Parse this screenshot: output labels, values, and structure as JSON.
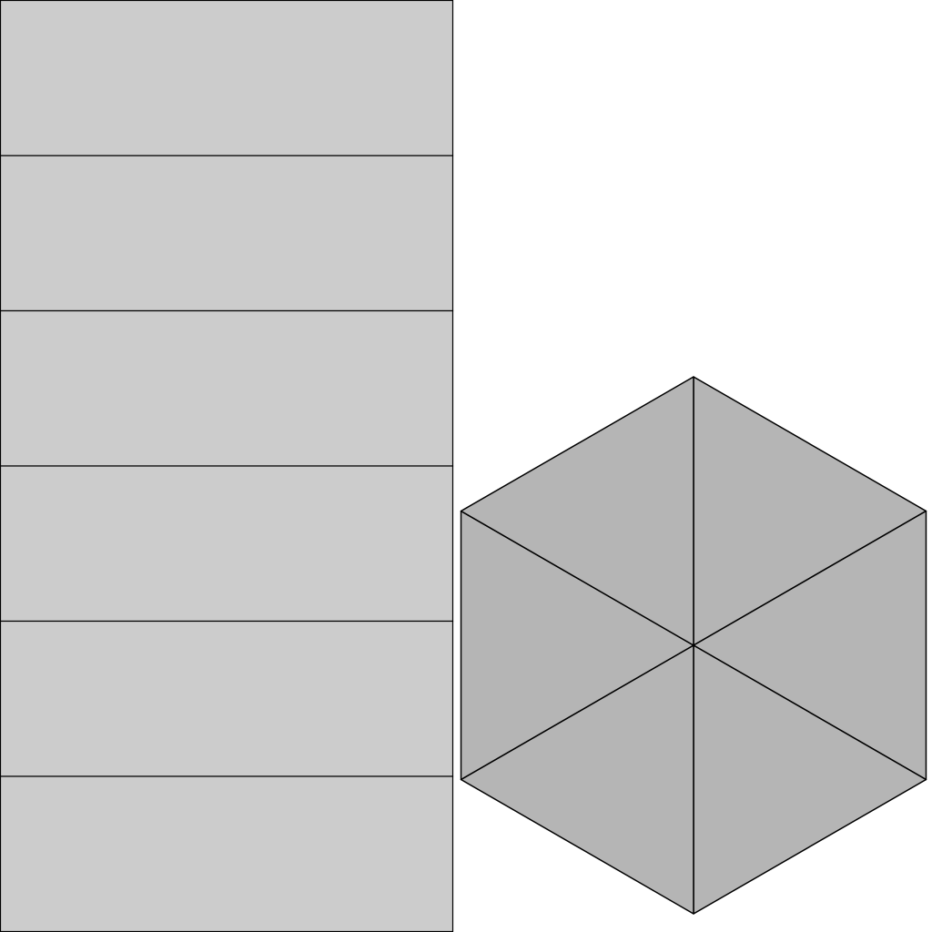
{
  "colors": {
    "background": "#ffffff",
    "rectangle_fill": "#cccccc",
    "hexagon_fill": "#b5b5b5",
    "stroke": "#000000"
  },
  "figure": {
    "rectangle_count": 6,
    "hexagon_sections": 6
  }
}
